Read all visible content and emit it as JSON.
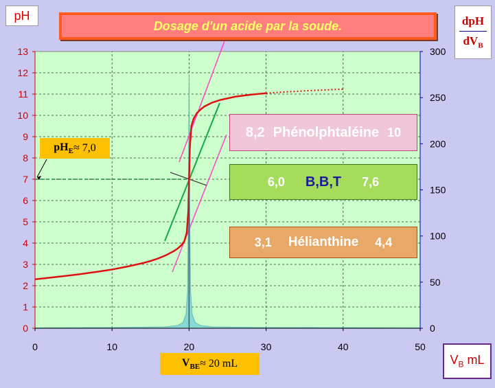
{
  "title": "Dosage d'un acide  par la soude.",
  "y_label": "pH",
  "y2_label": {
    "num": "dpH",
    "den_main": "dV",
    "den_sub": "B"
  },
  "x_label": {
    "main": "V",
    "sub": "B",
    "unit": " mL"
  },
  "pHE": {
    "main": "pH",
    "sub": "E",
    "rest": " ≈ 7,0"
  },
  "VBE": {
    "main": "V",
    "sub": "BE",
    "rest": " ≈ 20 mL"
  },
  "indicators": [
    {
      "low": "8,2",
      "name": "Phénolphtaléine",
      "high": "10"
    },
    {
      "low": "6,0",
      "name": "B,B,T",
      "high": "7,6"
    },
    {
      "low": "3,1",
      "name": "Hélianthine",
      "high": "4,4"
    }
  ],
  "colors": {
    "plot_bg": "#ccffcc",
    "ph_curve": "#dd1111",
    "derivative": "#7fd6d6",
    "tangent_pink": "#ff44cc",
    "tangent_green": "#11aa44",
    "equivalence": "#228844"
  },
  "chart_data": {
    "type": "line",
    "xlim": [
      0,
      50
    ],
    "ylim": [
      0,
      13
    ],
    "y2lim": [
      0,
      300
    ],
    "x_ticks": [
      0,
      10,
      20,
      30,
      40,
      50
    ],
    "y_ticks": [
      0,
      1,
      2,
      3,
      4,
      5,
      6,
      7,
      8,
      9,
      10,
      11,
      12,
      13
    ],
    "y2_ticks": [
      0,
      50,
      100,
      150,
      200,
      250,
      300
    ],
    "grid": true,
    "series": [
      {
        "axis": "left",
        "style": "solid",
        "x": [
          0,
          2,
          4,
          6,
          8,
          10,
          12,
          14,
          15,
          16,
          17,
          18,
          18.5,
          19,
          19.4,
          19.7,
          19.9,
          20,
          20.1,
          20.3,
          20.6,
          21,
          21.5,
          22,
          23,
          24,
          26,
          28,
          30
        ],
        "y": [
          2.3,
          2.38,
          2.46,
          2.55,
          2.65,
          2.76,
          2.9,
          3.06,
          3.16,
          3.28,
          3.43,
          3.62,
          3.74,
          3.9,
          4.1,
          4.5,
          5.5,
          7.0,
          8.5,
          9.5,
          9.85,
          10.1,
          10.28,
          10.42,
          10.6,
          10.72,
          10.88,
          10.97,
          11.04
        ]
      },
      {
        "axis": "left",
        "style": "dotted",
        "x": [
          30,
          32,
          34,
          36,
          38,
          40
        ],
        "y": [
          11.04,
          11.09,
          11.13,
          11.17,
          11.2,
          11.23
        ]
      },
      {
        "axis": "right",
        "style": "fill",
        "x": [
          0,
          10,
          17,
          18.5,
          19.2,
          19.6,
          19.8,
          19.9,
          20,
          20.1,
          20.2,
          20.4,
          20.8,
          21.5,
          23,
          30,
          50
        ],
        "y": [
          0.5,
          0.8,
          1.5,
          3,
          6,
          15,
          40,
          120,
          275,
          120,
          40,
          15,
          6,
          3,
          1.5,
          0.8,
          0.5
        ]
      }
    ],
    "equivalence": {
      "x": 20,
      "y": 7.0
    }
  }
}
